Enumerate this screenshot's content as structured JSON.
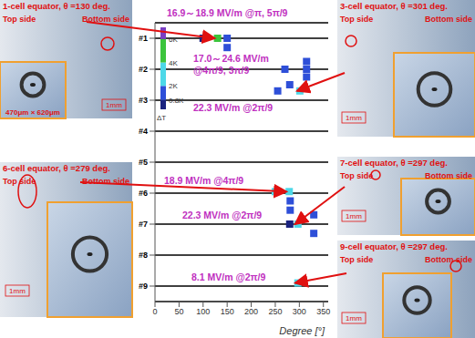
{
  "chart_data": {
    "type": "scatter",
    "x_label": "Degree [°]",
    "xlim": [
      0,
      360
    ],
    "xticks": [
      0,
      50,
      100,
      150,
      200,
      250,
      300,
      350
    ],
    "ylim": [
      0.5,
      9.5
    ],
    "yticks": [
      {
        "value": 1,
        "label": "#1"
      },
      {
        "value": 2,
        "label": "#2"
      },
      {
        "value": 3,
        "label": "#3"
      },
      {
        "value": 4,
        "label": "#4"
      },
      {
        "value": 5,
        "label": "#5"
      },
      {
        "value": 6,
        "label": "#6"
      },
      {
        "value": 7,
        "label": "#7"
      },
      {
        "value": 8,
        "label": "#8"
      },
      {
        "value": 9,
        "label": "#9"
      }
    ],
    "grid": true,
    "marker": "square",
    "x": [
      100,
      130,
      150,
      150,
      315,
      315,
      315,
      270,
      280,
      255,
      301,
      250,
      279,
      281,
      281,
      280,
      297,
      330,
      330,
      297
    ],
    "values": [
      1.0,
      1.0,
      1.0,
      1.3,
      1.75,
      2.0,
      2.25,
      2.0,
      2.5,
      2.7,
      2.7,
      5.95,
      5.95,
      6.25,
      6.55,
      7.0,
      7.0,
      6.7,
      7.3,
      8.9
    ],
    "dT": [
      0.5,
      5,
      1.5,
      1.5,
      1.5,
      1.5,
      1.5,
      1.5,
      1.5,
      1.5,
      3,
      3,
      3,
      1.5,
      1.5,
      0.5,
      3,
      1.5,
      1.5,
      3
    ],
    "colorbar": {
      "label": "ΔT",
      "bins": [
        0,
        0.8,
        2,
        4,
        6,
        7
      ],
      "colors": [
        "#1a237e",
        "#2e4fd8",
        "#4dd8e8",
        "#3cc43c",
        "#7b3fc4"
      ],
      "ticks": [
        {
          "value": 0.8,
          "label": "0.8K"
        },
        {
          "value": 2,
          "label": "2K"
        },
        {
          "value": 4,
          "label": "4K"
        },
        {
          "value": 6,
          "label": "6K"
        }
      ]
    },
    "annotations": [
      {
        "lines": [
          "16.9～18.9 MV/m @π, 5π/9"
        ]
      },
      {
        "lines": [
          "17.0～24.6 MV/m",
          "@4π/9, 3π/9"
        ]
      },
      {
        "lines": [
          "22.3 MV/m @2π/9"
        ]
      },
      {
        "lines": [
          "18.9 MV/m @4π/9"
        ]
      },
      {
        "lines": [
          "22.3 MV/m @2π/9"
        ]
      },
      {
        "lines": [
          "8.1 MV/m @2π/9"
        ]
      }
    ]
  },
  "panels": [
    {
      "title": "1-cell equator, θ =130 deg.",
      "top": "Top side",
      "bottom": "Bottom side",
      "scale": "1mm",
      "inset": "470μm × 620μm"
    },
    {
      "title": "3-cell equator, θ =301 deg.",
      "top": "Top side",
      "bottom": "Bottom side",
      "scale": "1mm"
    },
    {
      "title": "6-cell equator, θ =279 deg.",
      "top": "Top side",
      "bottom": "Bottom side",
      "scale": "1mm"
    },
    {
      "title": "7-cell equator, θ =297 deg.",
      "top": "Top side",
      "bottom": "Bottom side",
      "scale": "1mm"
    },
    {
      "title": "9-cell equator, θ =297 deg.",
      "top": "Top side",
      "bottom": "Bottom side",
      "scale": "1mm"
    }
  ]
}
